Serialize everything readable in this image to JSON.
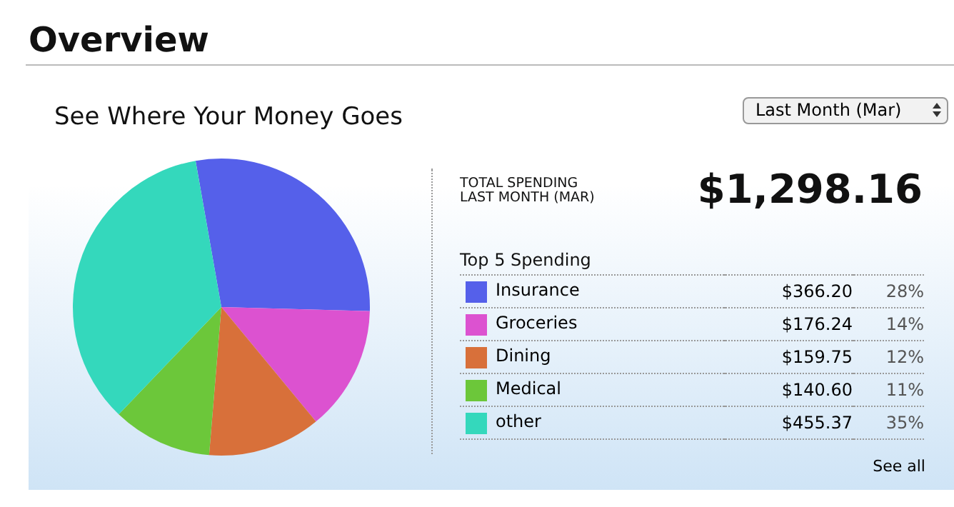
{
  "chart_data": {
    "type": "pie",
    "title": "Overview",
    "subtitle": "See Where Your Money Goes",
    "legend_title": "Top 5 Spending",
    "legend": "right",
    "categories": [
      "Insurance",
      "Groceries",
      "Dining",
      "Medical",
      "other"
    ],
    "values": [
      366.2,
      176.24,
      159.75,
      140.6,
      455.37
    ],
    "colors": [
      "#5560ea",
      "#dc52d0",
      "#d8703a",
      "#6cc73a",
      "#34d8bc"
    ],
    "value_labels": [
      "$366.20",
      "$176.24",
      "$159.75",
      "$140.60",
      "$455.37"
    ],
    "annotations": [
      "Last Month (Mar)",
      "TOTAL SPENDING\nLAST MONTH (MAR)",
      "$1,298.16",
      "See all",
      {
        "text": "28%",
        "x": "Insurance"
      },
      {
        "text": "14%",
        "x": "Groceries"
      },
      {
        "text": "12%",
        "x": "Dining"
      },
      {
        "text": "11%",
        "x": "Medical"
      },
      {
        "text": "35%",
        "x": "other"
      }
    ]
  }
}
